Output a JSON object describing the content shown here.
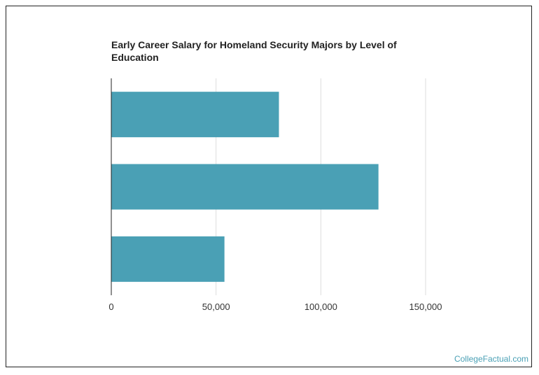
{
  "chart_data": {
    "type": "bar",
    "orientation": "horizontal",
    "title": "Early Career Salary for Homeland Security Majors by Level of Education",
    "categories": [
      "",
      "",
      ""
    ],
    "values": [
      80000,
      127500,
      54000
    ],
    "xlim": [
      0,
      150000
    ],
    "xticks": [
      0,
      50000,
      100000,
      150000
    ],
    "xtick_labels": [
      "0",
      "50,000",
      "100,000",
      "150,000"
    ],
    "xlabel": "",
    "ylabel": "",
    "grid": true,
    "colors": {
      "bar": "#4aa0b5",
      "grid": "#dddddd",
      "axis": "#222222"
    }
  },
  "watermark": "CollegeFactual.com"
}
